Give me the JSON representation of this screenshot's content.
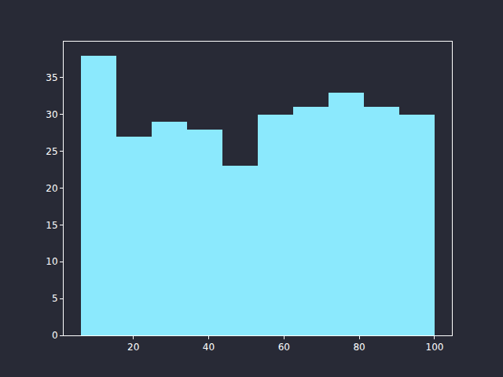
{
  "chart_data": {
    "type": "histogram",
    "bins": [
      6,
      15.4,
      24.8,
      34.2,
      43.6,
      53,
      62.4,
      71.8,
      81.2,
      90.6,
      100
    ],
    "values": [
      38,
      27,
      29,
      28,
      23,
      30,
      31,
      33,
      31,
      30
    ],
    "color": "#8be9fd",
    "xlim": [
      1.5,
      104.6
    ],
    "xticks": [
      20,
      40,
      60,
      80,
      100
    ],
    "ylim": [
      0,
      39.9
    ],
    "yticks": [
      0,
      5,
      10,
      15,
      20,
      25,
      30,
      35
    ],
    "grid": false
  }
}
